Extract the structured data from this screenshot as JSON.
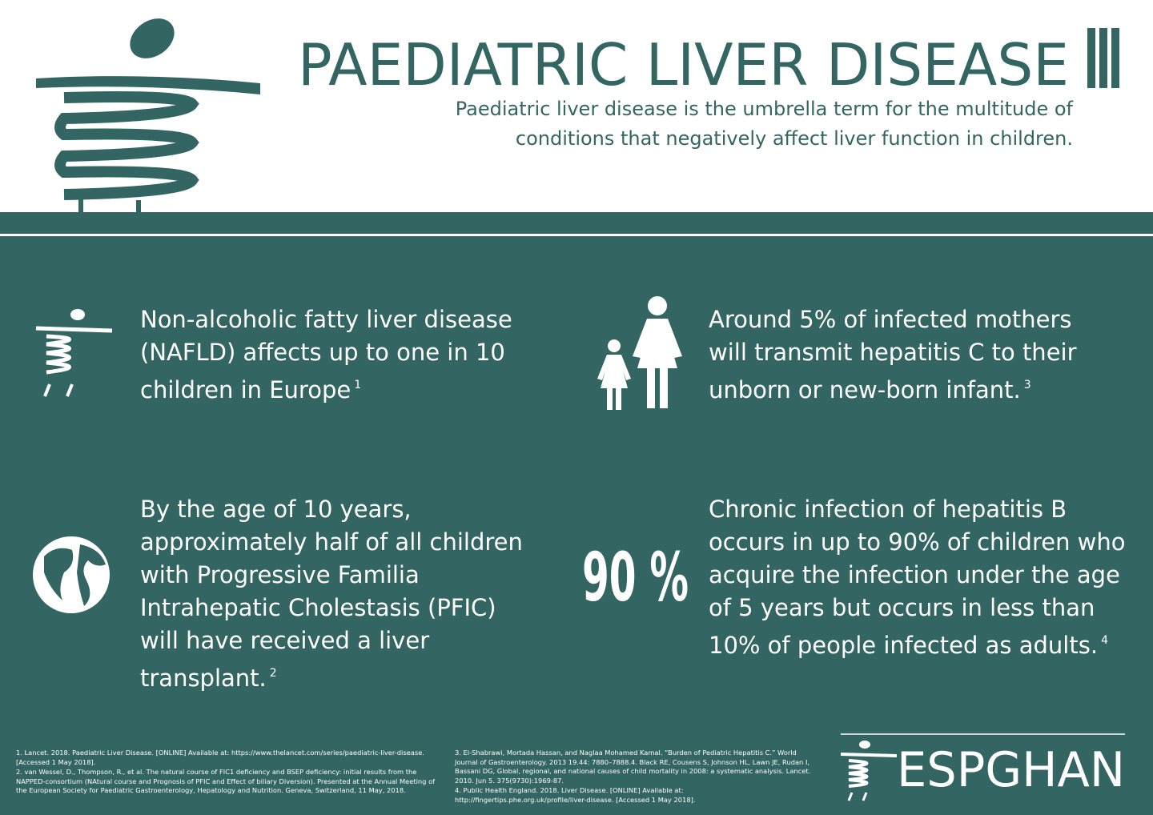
{
  "header": {
    "title": "PAEDIATRIC LIVER DISEASE",
    "subtitle": "Paediatric liver disease is the umbrella term for the multitude of conditions that negatively affect liver function in children."
  },
  "facts": [
    {
      "text": "Non-alcoholic fatty liver disease (NAFLD) affects up to one in 10 children in Europe",
      "note": "1"
    },
    {
      "text": "Around 5% of infected mothers will transmit hepatitis C to their unborn or new-born infant.",
      "note": "3"
    },
    {
      "text": "By the age of 10 years, approximately half of all children with Progressive Familia Intrahepatic Cholestasis (PFIC) will have received a liver transplant.",
      "note": "2"
    },
    {
      "text": "Chronic infection of hepatitis B occurs in up to 90% of children who acquire the infection under the age of 5 years but occurs in less than 10% of people infected as adults.",
      "note": "4"
    }
  ],
  "stat": "90 %",
  "references": {
    "left": [
      "1. Lancet. 2018. Paediatric Liver Disease. [ONLINE] Available at: https://www.thelancet.com/series/paediatric-liver-disease. [Accessed 1 May 2018].",
      "2. van Wessel, D., Thompson, R., et al. The natural course of FIC1 deficiency and BSEP deficiency: initial results from the NAPPED-consortium (NAtural course and Prognosis of PFIC and Effect of biliary Diversion). Presented at the Annual Meeting of the European Society for Paediatric Gastroenterology, Hepatology and Nutrition. Geneva, Switzerland, 11 May, 2018."
    ],
    "right": [
      "3.  El-Shabrawi, Mortada Hassan, and Naglaa Mohamed Kamal. “Burden of Pediatric Hepatitis C.” World Journal of Gastroenterology. 2013 19.44: 7880–7888.4. Black RE, Cousens S, Johnson HL, Lawn JE, Rudan I, Bassani DG, Global, regional, and national causes of child mortality in 2008: a systematic analysis. Lancet. 2010. Jun 5. 375(9730):1969-87.",
      "4. Public Health England. 2018. Liver Disease. [ONLINE] Available at: http://fingertips.phe.org.uk/profile/liver-disease. [Accessed 1 May 2018]."
    ]
  },
  "logo": "ESPGHAN"
}
